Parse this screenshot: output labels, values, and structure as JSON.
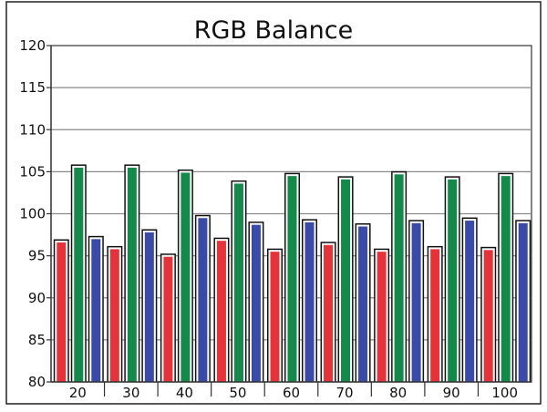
{
  "chart_data": {
    "type": "bar",
    "title": "RGB Balance",
    "xlabel": "",
    "ylabel": "",
    "ylim": [
      80,
      120
    ],
    "yticks": [
      80,
      85,
      90,
      95,
      100,
      105,
      110,
      115,
      120
    ],
    "grid": true,
    "legend": "none",
    "categories": [
      "20",
      "30",
      "40",
      "50",
      "60",
      "70",
      "80",
      "90",
      "100"
    ],
    "series": [
      {
        "color": "#e8323a",
        "values": [
          96.8,
          96.0,
          95.1,
          97.0,
          95.7,
          96.5,
          95.7,
          96.0,
          95.9
        ]
      },
      {
        "color": "#128a4a",
        "values": [
          105.7,
          105.7,
          105.1,
          103.8,
          104.7,
          104.3,
          104.9,
          104.3,
          104.7
        ]
      },
      {
        "color": "#3a4aa8",
        "values": [
          97.2,
          98.0,
          99.7,
          98.9,
          99.2,
          98.7,
          99.1,
          99.4,
          99.1
        ]
      }
    ]
  }
}
